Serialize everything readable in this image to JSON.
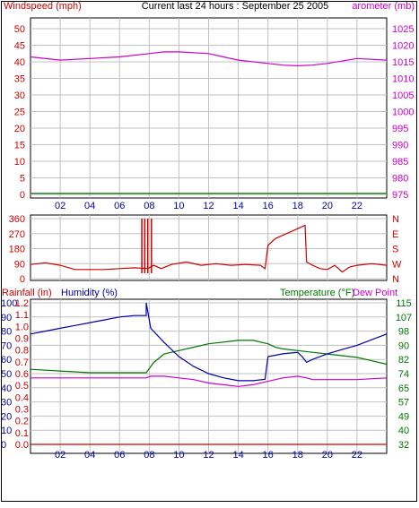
{
  "header": {
    "left_label": "Windspeed (mph)",
    "title": "Current last 24 hours : September 25 2005",
    "right_label": "arometer (mb)"
  },
  "colors": {
    "wind": "#cc0000",
    "barometer": "#cc00cc",
    "dir": "#cc0000",
    "rain": "#cc0000",
    "humidity": "#0000aa",
    "temperature": "#007700",
    "dewpoint": "#cc00cc",
    "grid": "#c0c0c0",
    "frame": "#000000"
  },
  "x_ticks": [
    "02",
    "04",
    "06",
    "08",
    "10",
    "12",
    "14",
    "16",
    "18",
    "20",
    "22"
  ],
  "chart_data": [
    {
      "type": "line",
      "x_hours": [
        0,
        2,
        4,
        6,
        8,
        9,
        10,
        12,
        13,
        14,
        16,
        17,
        18,
        19,
        20,
        22,
        24
      ],
      "left_axis": {
        "label": "Windspeed (mph)",
        "ticks": [
          0,
          5,
          10,
          15,
          20,
          25,
          30,
          35,
          40,
          45,
          50
        ],
        "range": [
          0,
          50
        ]
      },
      "right_axis": {
        "label": "arometer (mb)",
        "ticks": [
          975,
          980,
          985,
          990,
          995,
          1000,
          1005,
          1010,
          1015,
          1020,
          1025
        ],
        "range": [
          975,
          1025
        ]
      },
      "series": [
        {
          "axis": "left",
          "values": [
            0.3,
            0.3,
            0.3,
            0.3,
            0.3,
            0.3,
            0.3,
            0.3,
            0.3,
            0.3,
            0.3,
            0.3,
            0.3,
            0.3,
            0.3,
            0.3,
            0.3
          ]
        },
        {
          "axis": "right",
          "values": [
            1016.5,
            1015.5,
            1016,
            1016.5,
            1017.5,
            1018,
            1018,
            1017.5,
            1016.5,
            1015.5,
            1014.5,
            1014,
            1013.8,
            1014,
            1014.5,
            1016,
            1015.5
          ]
        }
      ],
      "grid": true
    },
    {
      "type": "line",
      "left_axis": {
        "ticks": [
          0,
          90,
          180,
          270,
          360
        ],
        "range": [
          0,
          360
        ]
      },
      "right_axis": {
        "ticks": [
          "N",
          "W",
          "S",
          "E",
          "N"
        ]
      },
      "points": [
        [
          0,
          85
        ],
        [
          1,
          95
        ],
        [
          2,
          80
        ],
        [
          3,
          55
        ],
        [
          4,
          55
        ],
        [
          5,
          55
        ],
        [
          6,
          60
        ],
        [
          7,
          65
        ],
        [
          7.9,
          60
        ],
        [
          8.3,
          80
        ],
        [
          8.8,
          60
        ],
        [
          9.5,
          85
        ],
        [
          10.5,
          100
        ],
        [
          11.5,
          80
        ],
        [
          12.5,
          90
        ],
        [
          13.5,
          80
        ],
        [
          14.5,
          85
        ],
        [
          15.5,
          80
        ],
        [
          15.8,
          60
        ],
        [
          16,
          200
        ],
        [
          16.5,
          240
        ],
        [
          17,
          260
        ],
        [
          17.5,
          280
        ],
        [
          18,
          300
        ],
        [
          18.5,
          320
        ],
        [
          18.6,
          100
        ],
        [
          19,
          80
        ],
        [
          19.5,
          60
        ],
        [
          20,
          55
        ],
        [
          20.5,
          80
        ],
        [
          21,
          40
        ],
        [
          21.5,
          70
        ],
        [
          22,
          80
        ],
        [
          23,
          90
        ],
        [
          24,
          80
        ]
      ],
      "spikes_hours": [
        7.5,
        7.7,
        7.9,
        8.15
      ],
      "spike_top": 360,
      "grid": true
    },
    {
      "type": "line",
      "left_axis_1": {
        "label": "Rainfall (in)",
        "ticks": [
          0.0,
          0.1,
          0.2,
          0.3,
          0.4,
          0.5,
          0.6,
          0.7,
          0.8,
          0.9,
          1.0,
          1.1,
          1.2
        ],
        "range": [
          0,
          1.2
        ]
      },
      "left_axis_2": {
        "label": "Humidity (%)",
        "ticks": [
          0,
          10,
          20,
          30,
          40,
          50,
          60,
          70,
          80,
          90,
          100
        ],
        "range": [
          0,
          100
        ]
      },
      "right_axis": {
        "label": "Temperature (°F)",
        "ticks": [
          32,
          40,
          49,
          57,
          65,
          74,
          82,
          90,
          98,
          107,
          115
        ],
        "range": [
          32,
          115
        ]
      },
      "right_label_extra": "Dew Point",
      "series": [
        {
          "key": "rain",
          "x_hours": [
            0,
            24
          ],
          "values": [
            0,
            0
          ]
        },
        {
          "key": "humidity",
          "x_hours": [
            0,
            1,
            2,
            3,
            4,
            5,
            6,
            7,
            7.8,
            7.8,
            8.1,
            9,
            10,
            11,
            12,
            13,
            14,
            15,
            15.8,
            16,
            16.5,
            17,
            18,
            18.3,
            18.6,
            19,
            20,
            21,
            22,
            23,
            24
          ],
          "values": [
            78,
            80,
            82,
            84,
            86,
            88,
            90,
            91,
            91,
            100,
            82,
            72,
            62,
            55,
            50,
            47,
            45,
            45,
            46,
            62,
            63,
            64,
            65,
            62,
            58,
            60,
            64,
            67,
            70,
            74,
            78
          ]
        },
        {
          "key": "temperature",
          "x_hours": [
            0,
            2,
            4,
            6,
            7.8,
            8.3,
            9,
            10,
            11,
            12,
            13,
            14,
            15,
            16,
            16.5,
            17,
            18,
            19,
            20,
            21,
            22,
            23,
            24
          ],
          "values": [
            76,
            75,
            74,
            74,
            74,
            80,
            85,
            87,
            89,
            91,
            92,
            93,
            93,
            91,
            89,
            88,
            87,
            86,
            85,
            84,
            83,
            81,
            79
          ]
        },
        {
          "key": "dewpoint",
          "x_hours": [
            0,
            2,
            4,
            6,
            7.8,
            8.1,
            9,
            10,
            11,
            12,
            13,
            14,
            15,
            16,
            17,
            18,
            18.6,
            19,
            20,
            22,
            24
          ],
          "values": [
            71,
            71,
            71,
            71,
            71,
            72,
            72,
            71,
            70,
            68,
            67,
            66,
            67,
            69,
            71,
            72,
            71,
            70,
            70,
            70,
            71
          ]
        }
      ],
      "grid": true
    }
  ]
}
